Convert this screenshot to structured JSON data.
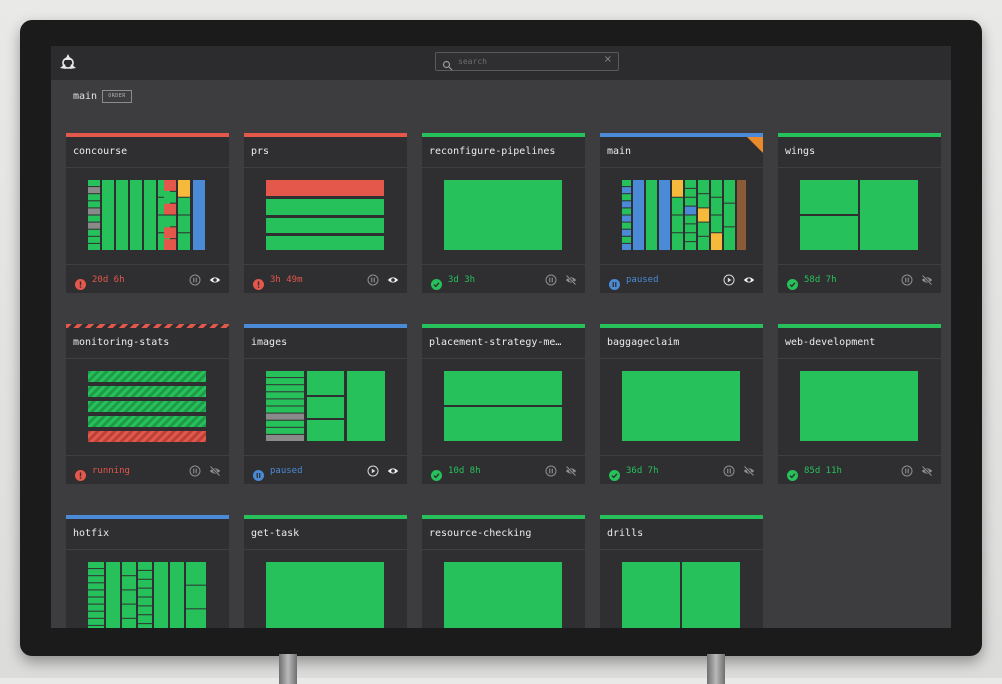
{
  "search": {
    "placeholder": "search"
  },
  "group": {
    "name": "main",
    "order_label": "ORDER"
  },
  "colors": {
    "succeeded": "#26c15b",
    "failed": "#e4574b",
    "paused": "#4a8ad6",
    "pending": "#8a8a8a",
    "errored": "#e98a2c"
  },
  "pipelines": [
    {
      "name": "concourse",
      "status": "failed",
      "status_text": "20d 6h",
      "pause_icon": "pause-icon",
      "visibility_icon": "eye-icon"
    },
    {
      "name": "prs",
      "status": "failed",
      "status_text": "3h 49m",
      "pause_icon": "pause-icon",
      "visibility_icon": "eye-icon"
    },
    {
      "name": "reconfigure-pipelines",
      "status": "succeeded",
      "status_text": "3d 3h",
      "pause_icon": "pause-icon",
      "visibility_icon": "eye-slash-icon"
    },
    {
      "name": "main",
      "status": "paused",
      "status_text": "paused",
      "pause_icon": "play-icon",
      "visibility_icon": "eye-icon"
    },
    {
      "name": "wings",
      "status": "succeeded",
      "status_text": "58d 7h",
      "pause_icon": "pause-icon",
      "visibility_icon": "eye-slash-icon"
    },
    {
      "name": "monitoring-stats",
      "status": "running",
      "status_text": "running",
      "pause_icon": "pause-icon",
      "visibility_icon": "eye-slash-icon"
    },
    {
      "name": "images",
      "status": "paused",
      "status_text": "paused",
      "pause_icon": "play-icon",
      "visibility_icon": "eye-icon"
    },
    {
      "name": "placement-strategy-me…",
      "status": "succeeded",
      "status_text": "10d 8h",
      "pause_icon": "pause-icon",
      "visibility_icon": "eye-slash-icon"
    },
    {
      "name": "baggageclaim",
      "status": "succeeded",
      "status_text": "36d 7h",
      "pause_icon": "pause-icon",
      "visibility_icon": "eye-slash-icon"
    },
    {
      "name": "web-development",
      "status": "succeeded",
      "status_text": "85d 11h",
      "pause_icon": "pause-icon",
      "visibility_icon": "eye-slash-icon"
    },
    {
      "name": "hotfix",
      "status": "paused"
    },
    {
      "name": "get-task",
      "status": "succeeded"
    },
    {
      "name": "resource-checking",
      "status": "succeeded"
    },
    {
      "name": "drills",
      "status": "succeeded"
    }
  ]
}
